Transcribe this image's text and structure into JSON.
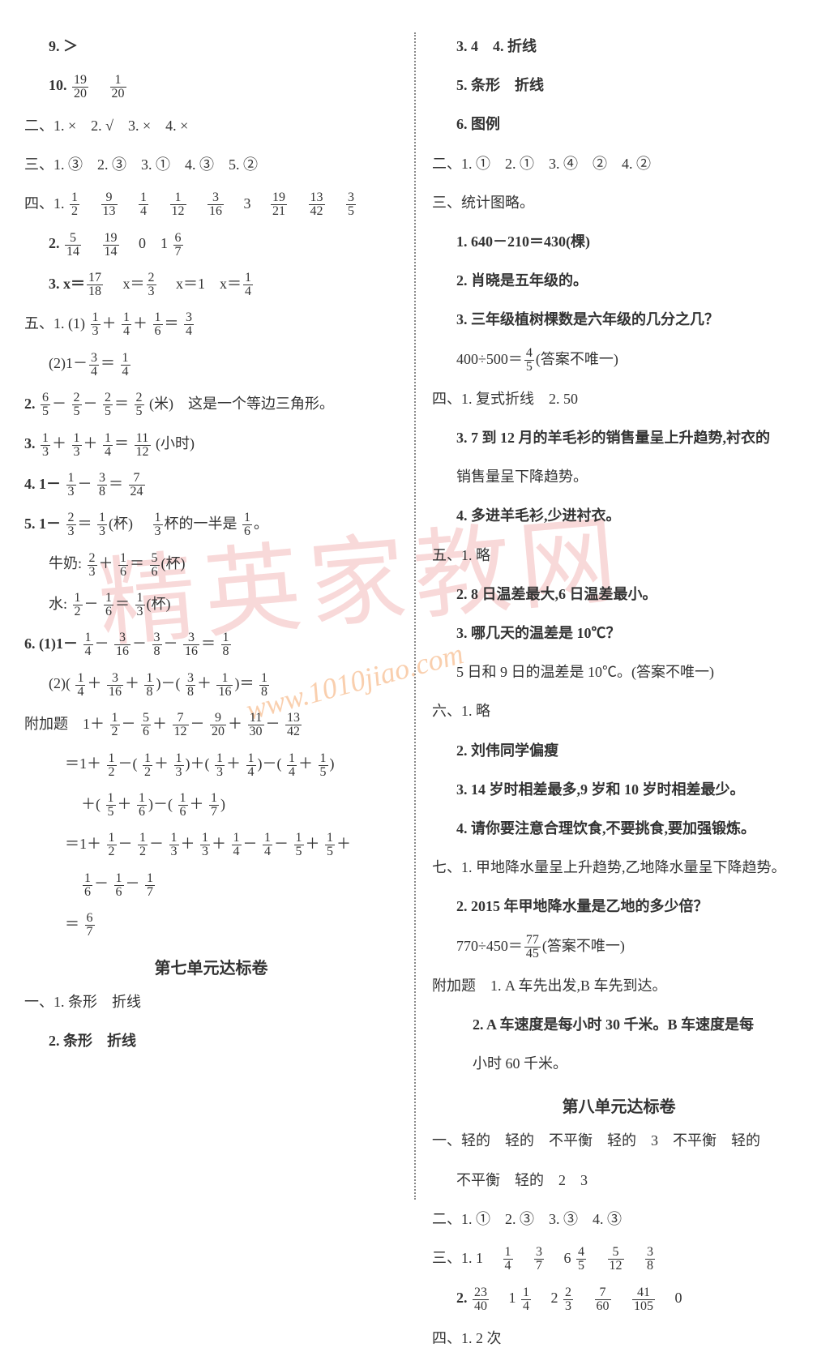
{
  "colors": {
    "text": "#333333",
    "background": "#ffffff",
    "watermark1": "#f5c0c0",
    "watermark2": "#f5a060",
    "divider": "#888888"
  },
  "typography": {
    "body_fontsize": 18,
    "title_fontsize": 20,
    "frac_fontsize": 16,
    "watermark1_fontsize": 120,
    "watermark2_fontsize": 36
  },
  "watermarks": {
    "w1": "精英家教网",
    "w2": "www.1010jiao.com"
  },
  "left": {
    "l1": "9. ＞",
    "l2a": "10.",
    "l2f1n": "19",
    "l2f1d": "20",
    "l2f2n": "1",
    "l2f2d": "20",
    "l3": "二、1. ×　2. √　3. ×　4. ×",
    "l4": "三、1. ③　2. ③　3. ①　4. ③　5. ②",
    "l5a": "四、1.",
    "l5frac": [
      [
        "1",
        "2"
      ],
      [
        "9",
        "13"
      ],
      [
        "1",
        "4"
      ],
      [
        "1",
        "12"
      ],
      [
        "3",
        "16"
      ]
    ],
    "l5b": "3",
    "l5frac2": [
      [
        "19",
        "21"
      ],
      [
        "13",
        "42"
      ],
      [
        "3",
        "5"
      ]
    ],
    "l6a": "2.",
    "l6frac": [
      [
        "5",
        "14"
      ],
      [
        "19",
        "14"
      ]
    ],
    "l6b": "0　1",
    "l6f3n": "6",
    "l6f3d": "7",
    "l7a": "3. x＝",
    "l7f1n": "17",
    "l7f1d": "18",
    "l7b": "x＝",
    "l7f2n": "2",
    "l7f2d": "3",
    "l7c": "x＝1　x＝",
    "l7f3n": "1",
    "l7f3d": "4",
    "l8a": "五、1. (1)",
    "l8f1n": "1",
    "l8f1d": "3",
    "l8p": "＋",
    "l8f2n": "1",
    "l8f2d": "4",
    "l8f3n": "1",
    "l8f3d": "6",
    "l8e": "＝",
    "l8f4n": "3",
    "l8f4d": "4",
    "l9a": "(2)1－",
    "l9f1n": "3",
    "l9f1d": "4",
    "l9e": "＝",
    "l9f2n": "1",
    "l9f2d": "4",
    "l10a": "2.",
    "l10f1n": "6",
    "l10f1d": "5",
    "l10m": "－",
    "l10f2n": "2",
    "l10f2d": "5",
    "l10f3n": "2",
    "l10f3d": "5",
    "l10e": "＝",
    "l10f4n": "2",
    "l10f4d": "5",
    "l10b": "(米)　这是一个等边三角形。",
    "l11a": "3.",
    "l11f1n": "1",
    "l11f1d": "3",
    "l11p": "＋",
    "l11f2n": "1",
    "l11f2d": "3",
    "l11f3n": "1",
    "l11f3d": "4",
    "l11e": "＝",
    "l11f4n": "11",
    "l11f4d": "12",
    "l11b": "(小时)",
    "l12a": "4. 1－",
    "l12f1n": "1",
    "l12f1d": "3",
    "l12m": "－",
    "l12f2n": "3",
    "l12f2d": "8",
    "l12e": "＝",
    "l12f3n": "7",
    "l12f3d": "24",
    "l13a": "5. 1－",
    "l13f1n": "2",
    "l13f1d": "3",
    "l13e": "＝",
    "l13f2n": "1",
    "l13f2d": "3",
    "l13b": "(杯)　",
    "l13f3n": "1",
    "l13f3d": "3",
    "l13c": "杯的一半是",
    "l13f4n": "1",
    "l13f4d": "6",
    "l13d": "。",
    "l14a": "牛奶:",
    "l14f1n": "2",
    "l14f1d": "3",
    "l14p": "＋",
    "l14f2n": "1",
    "l14f2d": "6",
    "l14e": "＝",
    "l14f3n": "5",
    "l14f3d": "6",
    "l14b": "(杯)",
    "l15a": "水:",
    "l15f1n": "1",
    "l15f1d": "2",
    "l15m": "－",
    "l15f2n": "1",
    "l15f2d": "6",
    "l15e": "＝",
    "l15f3n": "1",
    "l15f3d": "3",
    "l15b": "(杯)",
    "l16a": "6. (1)1－",
    "l16f1n": "1",
    "l16f1d": "4",
    "l16m": "－",
    "l16f2n": "3",
    "l16f2d": "16",
    "l16f3n": "3",
    "l16f3d": "8",
    "l16f4n": "3",
    "l16f4d": "16",
    "l16e": "＝",
    "l16f5n": "1",
    "l16f5d": "8",
    "l17a": "(2)(",
    "l17f1n": "1",
    "l17f1d": "4",
    "l17p": "＋",
    "l17f2n": "3",
    "l17f2d": "16",
    "l17f3n": "1",
    "l17f3d": "8",
    "l17b": ")－(",
    "l17f4n": "3",
    "l17f4d": "8",
    "l17f5n": "1",
    "l17f5d": "16",
    "l17c": ")＝",
    "l17f6n": "1",
    "l17f6d": "8",
    "l18a": "附加题　1＋",
    "l18f1n": "1",
    "l18f1d": "2",
    "l18m": "－",
    "l18f2n": "5",
    "l18f2d": "6",
    "l18p": "＋",
    "l18f3n": "7",
    "l18f3d": "12",
    "l18f4n": "9",
    "l18f4d": "20",
    "l18f5n": "11",
    "l18f5d": "30",
    "l18f6n": "13",
    "l18f6d": "42",
    "l19a": "＝1＋",
    "l19f1n": "1",
    "l19f1d": "2",
    "l19b": "－(",
    "l19f2n": "1",
    "l19f2d": "2",
    "l19p": "＋",
    "l19f3n": "1",
    "l19f3d": "3",
    "l19c": ")＋(",
    "l19f4n": "1",
    "l19f4d": "3",
    "l19f5n": "1",
    "l19f5d": "4",
    "l19d": ")－(",
    "l19f6n": "1",
    "l19f6d": "4",
    "l19f7n": "1",
    "l19f7d": "5",
    "l19e": ")",
    "l20a": "＋(",
    "l20f1n": "1",
    "l20f1d": "5",
    "l20p": "＋",
    "l20f2n": "1",
    "l20f2d": "6",
    "l20b": ")－(",
    "l20f3n": "1",
    "l20f3d": "6",
    "l20f4n": "1",
    "l20f4d": "7",
    "l20c": ")",
    "l21a": "＝1＋",
    "l21f1n": "1",
    "l21f1d": "2",
    "l21m": "－",
    "l21f2n": "1",
    "l21f2d": "2",
    "l21f3n": "1",
    "l21f3d": "3",
    "l21p": "＋",
    "l21f4n": "1",
    "l21f4d": "3",
    "l21f5n": "1",
    "l21f5d": "4",
    "l21f6n": "1",
    "l21f6d": "4",
    "l21f7n": "1",
    "l21f7d": "5",
    "l21f8n": "1",
    "l21f8d": "5",
    "l21b": "＋",
    "l22f1n": "1",
    "l22f1d": "6",
    "l22m": "－",
    "l22f2n": "1",
    "l22f2d": "6",
    "l22f3n": "1",
    "l22f3d": "7",
    "l23a": "＝",
    "l23f1n": "6",
    "l23f1d": "7",
    "title1": "第七单元达标卷",
    "l24": "一、1. 条形　折线",
    "l25": "2. 条形　折线"
  },
  "right": {
    "r1": "3. 4　4. 折线",
    "r2": "5. 条形　折线",
    "r3": "6. 图例",
    "r4": "二、1. ①　2. ①　3. ④　②　4. ②",
    "r5": "三、统计图略。",
    "r6": "1. 640－210＝430(棵)",
    "r7": "2. 肖晓是五年级的。",
    "r8": "3. 三年级植树棵数是六年级的几分之几？",
    "r9a": "400÷500＝",
    "r9fn": "4",
    "r9fd": "5",
    "r9b": "(答案不唯一)",
    "r10": "四、1. 复式折线　2. 50",
    "r11": "3. 7 到 12 月的羊毛衫的销售量呈上升趋势,衬衣的",
    "r11b": "销售量呈下降趋势。",
    "r12": "4. 多进羊毛衫,少进衬衣。",
    "r13": "五、1. 略",
    "r14": "2. 8 日温差最大,6 日温差最小。",
    "r15": "3. 哪几天的温差是 10℃？",
    "r16": "5 日和 9 日的温差是 10℃。(答案不唯一)",
    "r17": "六、1. 略",
    "r18": "2. 刘伟同学偏瘦",
    "r19": "3. 14 岁时相差最多,9 岁和 10 岁时相差最少。",
    "r20": "4. 请你要注意合理饮食,不要挑食,要加强锻炼。",
    "r21": "七、1. 甲地降水量呈上升趋势,乙地降水量呈下降趋势。",
    "r22": "2. 2015 年甲地降水量是乙地的多少倍？",
    "r23a": "770÷450＝",
    "r23fn": "77",
    "r23fd": "45",
    "r23b": "(答案不唯一)",
    "r24": "附加题　1. A 车先出发,B 车先到达。",
    "r25": "2. A 车速度是每小时 30 千米。B 车速度是每",
    "r25b": "小时 60 千米。",
    "title2": "第八单元达标卷",
    "r26": "一、轻的　轻的　不平衡　轻的　3　不平衡　轻的",
    "r26b": "不平衡　轻的　2　3",
    "r27": "二、1. ①　2. ③　3. ③　4. ③",
    "r28a": "三、1. 1　",
    "r28frac": [
      [
        "1",
        "4"
      ],
      [
        "3",
        "7"
      ]
    ],
    "r28b": "6",
    "r28frac2": [
      [
        "4",
        "5"
      ],
      [
        "5",
        "12"
      ],
      [
        "3",
        "8"
      ]
    ],
    "r29a": "2.",
    "r29f1n": "23",
    "r29f1d": "40",
    "r29b": "1",
    "r29f2n": "1",
    "r29f2d": "4",
    "r29c": "2",
    "r29f3n": "2",
    "r29f3d": "3",
    "r29frac": [
      [
        "7",
        "60"
      ],
      [
        "41",
        "105"
      ]
    ],
    "r29d": "0",
    "r30": "四、1. 2 次"
  }
}
